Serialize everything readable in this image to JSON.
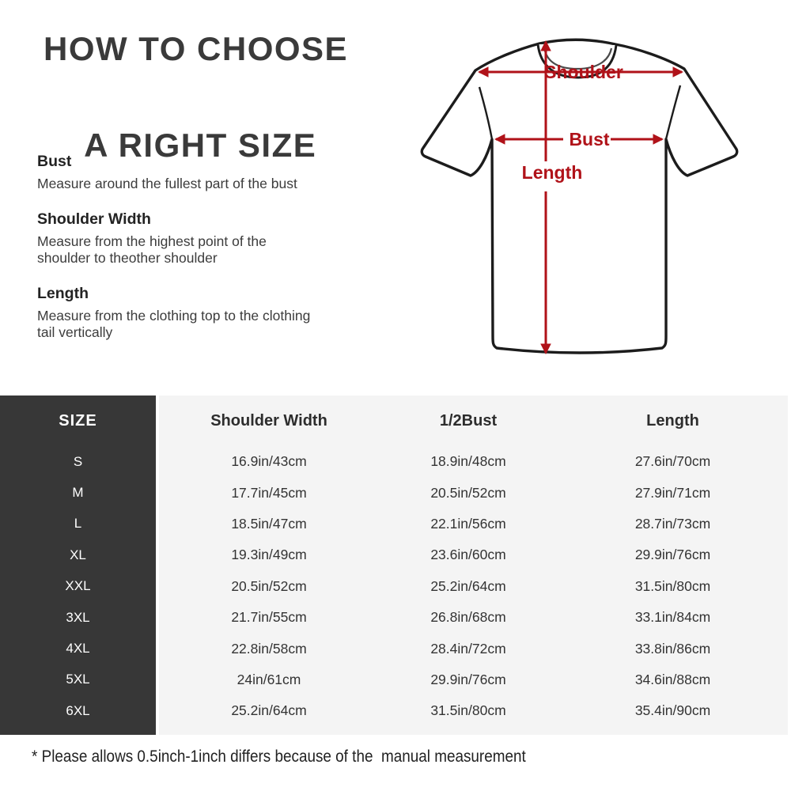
{
  "title": {
    "line1": "HOW TO CHOOSE",
    "line2": "A RIGHT SIZE"
  },
  "instructions": [
    {
      "term": "Bust",
      "desc": "Measure around the fullest part of the bust"
    },
    {
      "term": "Shoulder Width",
      "desc": "Measure from the highest point of the shoulder to theother shoulder"
    },
    {
      "term": "Length",
      "desc": "Measure from the clothing top to the clothing tail vertically"
    }
  ],
  "diagram": {
    "shoulder_label": "Shoulder",
    "bust_label": "Bust",
    "length_label": "Length",
    "arrow_color": "#b01219",
    "outline_color": "#1c1c1c"
  },
  "size_table": {
    "type": "table",
    "columns": [
      "SIZE",
      "Shoulder Width",
      "1/2Bust",
      "Length"
    ],
    "rows": [
      [
        "S",
        "16.9in/43cm",
        "18.9in/48cm",
        "27.6in/70cm"
      ],
      [
        "M",
        "17.7in/45cm",
        "20.5in/52cm",
        "27.9in/71cm"
      ],
      [
        "L",
        "18.5in/47cm",
        "22.1in/56cm",
        "28.7in/73cm"
      ],
      [
        "XL",
        "19.3in/49cm",
        "23.6in/60cm",
        "29.9in/76cm"
      ],
      [
        "XXL",
        "20.5in/52cm",
        "25.2in/64cm",
        "31.5in/80cm"
      ],
      [
        "3XL",
        "21.7in/55cm",
        "26.8in/68cm",
        "33.1in/84cm"
      ],
      [
        "4XL",
        "22.8in/58cm",
        "28.4in/72cm",
        "33.8in/86cm"
      ],
      [
        "5XL",
        "24in/61cm",
        "29.9in/76cm",
        "34.6in/88cm"
      ],
      [
        "6XL",
        "25.2in/64cm",
        "31.5in/80cm",
        "35.4in/90cm"
      ]
    ],
    "size_column_bg": "#373737",
    "body_bg": "#f4f4f4"
  },
  "footnote": "* Please allows 0.5inch-1inch differs because of the  manual measurement"
}
